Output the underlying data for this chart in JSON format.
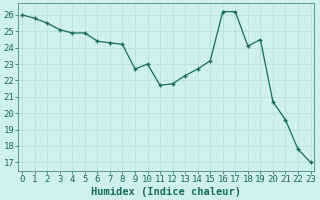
{
  "xlabel": "Humidex (Indice chaleur)",
  "x": [
    0,
    1,
    2,
    3,
    4,
    5,
    6,
    7,
    8,
    9,
    10,
    11,
    12,
    13,
    14,
    15,
    16,
    17,
    18,
    19,
    20,
    21,
    22,
    23
  ],
  "y": [
    26.0,
    25.8,
    25.5,
    25.1,
    24.9,
    24.9,
    24.4,
    24.3,
    24.2,
    22.7,
    23.0,
    21.7,
    21.8,
    22.3,
    22.7,
    23.2,
    26.2,
    26.2,
    24.1,
    24.5,
    20.7,
    19.6,
    17.8,
    17.0
  ],
  "line_color": "#1a6b5a",
  "bg_color": "#cff0ee",
  "grid_color": "#b8ddd9",
  "ylim_min": 16.5,
  "ylim_max": 26.7,
  "yticks": [
    17,
    18,
    19,
    20,
    21,
    22,
    23,
    24,
    25,
    26
  ],
  "xlim_min": -0.3,
  "xlim_max": 23.3,
  "tick_fontsize": 6.5,
  "label_fontsize": 7.5
}
